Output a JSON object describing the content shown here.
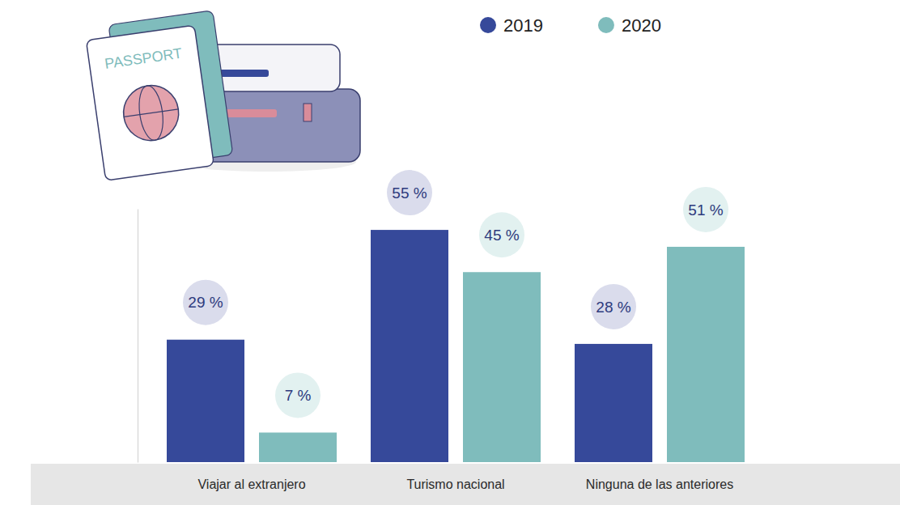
{
  "chart_data": {
    "type": "bar",
    "categories": [
      "Viajar al extranjero",
      "Turismo nacional",
      "Ninguna de las anteriores"
    ],
    "series": [
      {
        "name": "2019",
        "color": "#36499a",
        "values": [
          29,
          55,
          28
        ],
        "value_labels": [
          "29 %",
          "55 %",
          "28 %"
        ]
      },
      {
        "name": "2020",
        "color": "#7fbcbc",
        "values": [
          7,
          45,
          51
        ],
        "value_labels": [
          "7 %",
          "45 %",
          "51 %"
        ]
      }
    ],
    "ylim": [
      0,
      60
    ],
    "tick_labels": "x",
    "data_labels": true,
    "legend": "top",
    "annotations": [
      "PASSPORT"
    ]
  }
}
